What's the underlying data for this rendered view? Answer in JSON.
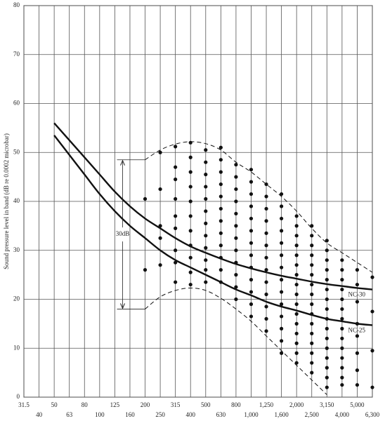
{
  "chart_data": {
    "type": "line",
    "ylabel": "Sound pressure level in band (dB re 0.0002 microbar)",
    "categories": [
      "31.5",
      "40",
      "50",
      "63",
      "80",
      "100",
      "125",
      "160",
      "200",
      "250",
      "315",
      "400",
      "500",
      "630",
      "800",
      "1,000",
      "1,250",
      "1,600",
      "2,000",
      "2,500",
      "3,150",
      "4,000",
      "5,000",
      "6,300"
    ],
    "ylim": [
      0,
      80
    ],
    "yticks": [
      0,
      10,
      20,
      30,
      40,
      50,
      60,
      70,
      80
    ],
    "grid": true,
    "annotation": "30dB",
    "series": [
      {
        "name": "NC-30",
        "color": "#111",
        "values": [
          null,
          null,
          56,
          52.5,
          49,
          45.5,
          42,
          39,
          36.5,
          34.5,
          32.5,
          30.8,
          29.5,
          28.3,
          27.2,
          26.3,
          25.5,
          24.8,
          24.2,
          23.6,
          23.1,
          22.7,
          22.3,
          22
        ]
      },
      {
        "name": "NC-25",
        "color": "#111",
        "values": [
          null,
          null,
          53.5,
          49.5,
          45.5,
          41.5,
          38,
          35,
          32.5,
          30,
          28,
          26.5,
          25,
          23.5,
          22,
          20.8,
          19.5,
          18.5,
          17.7,
          16.8,
          16,
          15.5,
          15,
          14.7
        ]
      },
      {
        "color": "#111",
        "style": "dashed",
        "values": [
          null,
          null,
          null,
          null,
          null,
          null,
          null,
          null,
          48.5,
          50.5,
          51.7,
          52.2,
          51.8,
          50.5,
          48,
          46,
          43.5,
          41,
          38,
          34.5,
          31.5,
          29.5,
          27.5,
          25.5
        ]
      },
      {
        "color": "#111",
        "style": "dashed",
        "values": [
          null,
          null,
          null,
          null,
          null,
          null,
          null,
          null,
          18,
          20.5,
          21.8,
          22.3,
          21.8,
          20.2,
          18,
          15.5,
          12.5,
          9.5,
          6.5,
          3.5,
          0.5,
          null,
          null,
          null
        ]
      },
      {
        "type": "scatter",
        "color": "#111",
        "values": [
          null,
          null,
          null,
          null,
          null,
          null,
          null,
          null,
          [
            40.5,
            26
          ],
          [
            50,
            42.5,
            35,
            32.5,
            27
          ],
          [
            51.2,
            47,
            44.5,
            40.5,
            37,
            34.5,
            30,
            27.5,
            23.5
          ],
          [
            52,
            49,
            46,
            43,
            40,
            37,
            34,
            31,
            28.5,
            25.5,
            23
          ],
          [
            50.5,
            48,
            45.5,
            43,
            40.5,
            38,
            35.5,
            33,
            30.5,
            28,
            26,
            23.5
          ],
          [
            51,
            48.5,
            46,
            43.5,
            41,
            38.5,
            36,
            33.5,
            31,
            28.5,
            26,
            23.5
          ],
          [
            47.5,
            45,
            42.5,
            40,
            37.5,
            35,
            32.5,
            30,
            27.5,
            25,
            22.5,
            20
          ],
          [
            46.5,
            44,
            41.5,
            39,
            36.5,
            34,
            31.5,
            29,
            26.5,
            24,
            21.5,
            19,
            16.5
          ],
          [
            43.5,
            41,
            38.5,
            36,
            33.5,
            31,
            28.5,
            26,
            23.5,
            21,
            18.5,
            16,
            13.5
          ],
          [
            41.5,
            39,
            36.5,
            34,
            31.5,
            29,
            26.5,
            24,
            21.5,
            19,
            16.5,
            14,
            11.5,
            9
          ],
          [
            37,
            35,
            33,
            31,
            29,
            27,
            25,
            23,
            21,
            19,
            17,
            15,
            13,
            11,
            9,
            7
          ],
          [
            35,
            33,
            31,
            29,
            27,
            25,
            23,
            21,
            19,
            17,
            15,
            13,
            11,
            9,
            7,
            5
          ],
          [
            32,
            30,
            28,
            26,
            24,
            22,
            20,
            18,
            16,
            14,
            12,
            10,
            8,
            6,
            4,
            2
          ],
          [
            28,
            26,
            24,
            22,
            20,
            18,
            16,
            14,
            12,
            10,
            8,
            6,
            4,
            2.5
          ],
          [
            26,
            23,
            19.5,
            15,
            12.5,
            9,
            5.5,
            2.5
          ],
          [
            24.5,
            17.5,
            9.5,
            2
          ]
        ]
      }
    ]
  }
}
